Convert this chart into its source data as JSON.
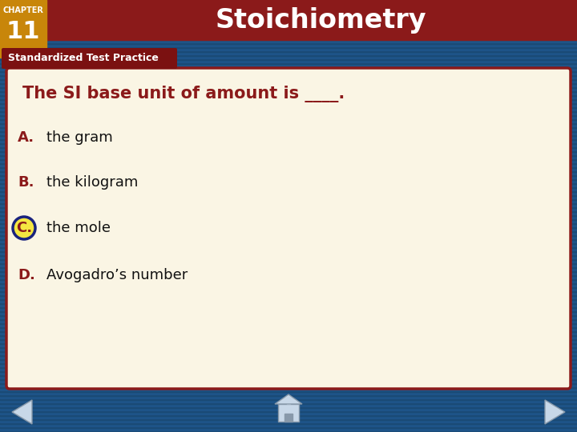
{
  "title": "Stoichiometry",
  "chapter_label": "CHAPTER",
  "chapter_number": "11",
  "section_label": "Standardized Test Practice",
  "question": "The SI base unit of amount is ____.",
  "options": [
    {
      "letter": "A.",
      "text": "the gram",
      "correct": false
    },
    {
      "letter": "B.",
      "text": "the kilogram",
      "correct": false
    },
    {
      "letter": "C.",
      "text": "the mole",
      "correct": true
    },
    {
      "letter": "D.",
      "text": "Avogadro’s number",
      "correct": false
    }
  ],
  "bg_color": "#1E5080",
  "header_bg": "#8B1A1A",
  "gold_box_color": "#C8860A",
  "section_bar_color": "#7B1111",
  "content_bg": "#FAF5E4",
  "content_border": "#8B1A1A",
  "letter_color": "#8B1A1A",
  "question_color": "#8B1A1A",
  "answer_color": "#111111",
  "circle_fill": "#F5E642",
  "circle_border": "#1A237E",
  "stripe_dark": "#1A4A75",
  "stripe_light": "#1E5488"
}
